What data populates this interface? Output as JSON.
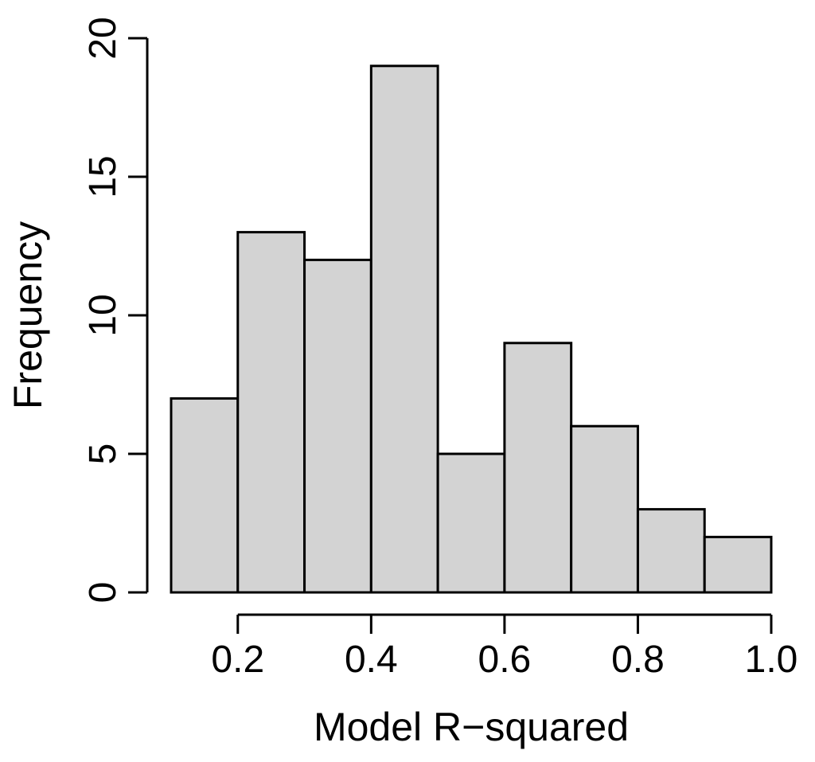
{
  "chart_data": {
    "type": "bar",
    "subtype": "histogram",
    "bins": [
      {
        "start": 0.1,
        "end": 0.2,
        "count": 7
      },
      {
        "start": 0.2,
        "end": 0.3,
        "count": 13
      },
      {
        "start": 0.3,
        "end": 0.4,
        "count": 12
      },
      {
        "start": 0.4,
        "end": 0.5,
        "count": 19
      },
      {
        "start": 0.5,
        "end": 0.6,
        "count": 5
      },
      {
        "start": 0.6,
        "end": 0.7,
        "count": 9
      },
      {
        "start": 0.7,
        "end": 0.8,
        "count": 6
      },
      {
        "start": 0.8,
        "end": 0.9,
        "count": 3
      },
      {
        "start": 0.9,
        "end": 1.0,
        "count": 2
      }
    ],
    "title": "",
    "xlabel": "Model R−squared",
    "ylabel": "Frequency",
    "xlim": [
      0.1,
      1.0
    ],
    "ylim": [
      0,
      20
    ],
    "x_ticks": [
      0.2,
      0.4,
      0.6,
      0.8,
      1.0
    ],
    "x_tick_labels": [
      "0.2",
      "0.4",
      "0.6",
      "0.8",
      "1.0"
    ],
    "y_ticks": [
      0,
      5,
      10,
      15,
      20
    ],
    "y_tick_labels": [
      "0",
      "5",
      "10",
      "15",
      "20"
    ],
    "grid": false,
    "bar_color": "#d3d3d3",
    "edge_color": "#000000"
  }
}
